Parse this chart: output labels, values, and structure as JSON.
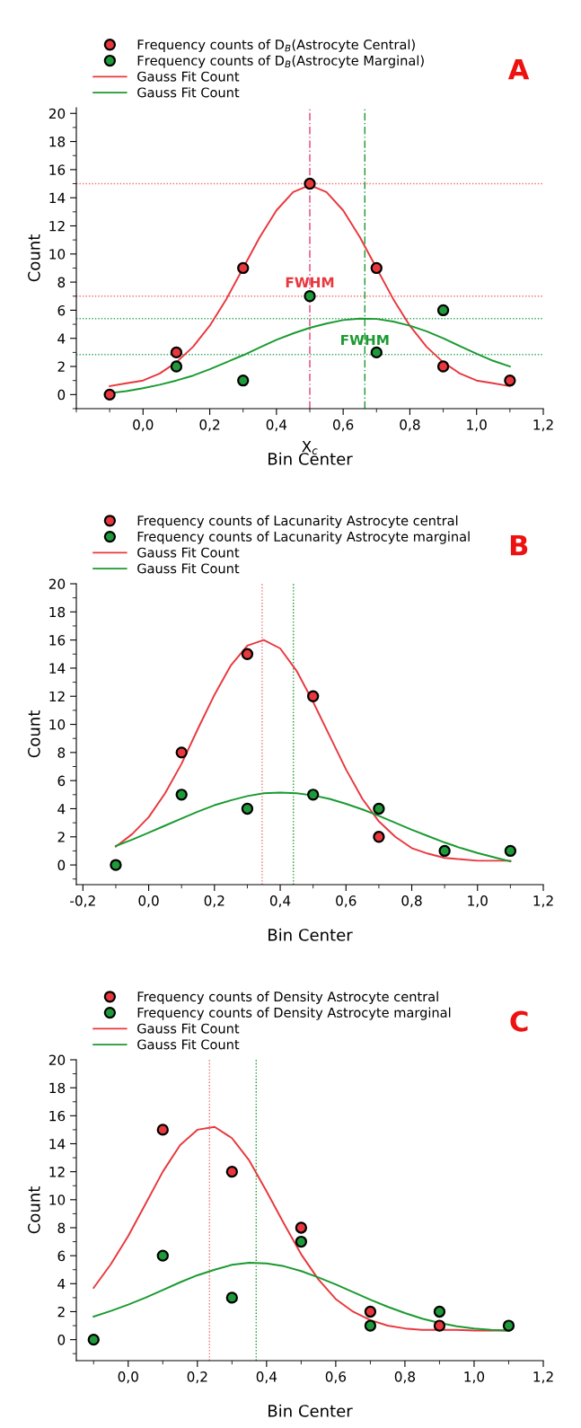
{
  "chart_data": [
    {
      "type": "scatter",
      "title": "A",
      "xlabel": "Bin Center",
      "ylabel": "Count",
      "x": [
        -0.1,
        0.1,
        0.3,
        0.5,
        0.7,
        0.9,
        1.1
      ],
      "legend": "top left",
      "xlim": [
        -0.2,
        1.2
      ],
      "ylim": [
        -1,
        20.4
      ],
      "xticks": [
        {
          "value": 0,
          "label": "0,0"
        },
        {
          "value": 0.2,
          "label": "0,2"
        },
        {
          "value": 0.4,
          "label": "0,4"
        },
        {
          "value": 0.6,
          "label": "0,6"
        },
        {
          "value": 0.8,
          "label": "0,8"
        },
        {
          "value": 1.0,
          "label": "1,0"
        },
        {
          "value": 1.2,
          "label": "1,2"
        }
      ],
      "yticks": [
        0,
        2,
        4,
        6,
        8,
        10,
        12,
        14,
        16,
        18,
        20
      ],
      "series": [
        {
          "type": "scatter",
          "marker": "circle",
          "name": "Frequency counts of D$_{B}$(Astrocyte Central)",
          "color": "#e8383d",
          "values": [
            0,
            3,
            9,
            15,
            9,
            2,
            1
          ]
        },
        {
          "type": "scatter",
          "marker": "circle",
          "name": "Frequency counts of D$_{B}$(Astrocyte Marginal)",
          "color": "#1f9a3a",
          "values": [
            null,
            2,
            1,
            7,
            3,
            6,
            null
          ]
        },
        {
          "type": "line",
          "marker": "none",
          "name": "Gauss Fit Count",
          "color": "#e8383d",
          "x": [
            -0.1,
            -0.05,
            0,
            0.05,
            0.1,
            0.15,
            0.2,
            0.25,
            0.3,
            0.35,
            0.4,
            0.45,
            0.5,
            0.55,
            0.6,
            0.65,
            0.7,
            0.75,
            0.8,
            0.85,
            0.9,
            0.95,
            1.0,
            1.05,
            1.1
          ],
          "values": [
            0.6,
            0.8,
            1.0,
            1.5,
            2.3,
            3.4,
            4.9,
            6.8,
            9.0,
            11.2,
            13.1,
            14.4,
            14.9,
            14.4,
            13.1,
            11.2,
            9.0,
            6.8,
            4.9,
            3.4,
            2.3,
            1.5,
            1.0,
            0.8,
            0.6
          ]
        },
        {
          "type": "line",
          "marker": "none",
          "name": "Gauss Fit Count",
          "color": "#1a9a30",
          "x": [
            -0.1,
            -0.05,
            0,
            0.05,
            0.1,
            0.15,
            0.2,
            0.25,
            0.3,
            0.35,
            0.4,
            0.45,
            0.5,
            0.55,
            0.6,
            0.65,
            0.7,
            0.75,
            0.8,
            0.85,
            0.9,
            0.95,
            1.0,
            1.05,
            1.1
          ],
          "values": [
            0.1,
            0.25,
            0.45,
            0.7,
            1.0,
            1.35,
            1.8,
            2.3,
            2.8,
            3.35,
            3.9,
            4.35,
            4.75,
            5.05,
            5.3,
            5.4,
            5.38,
            5.2,
            4.9,
            4.5,
            4.0,
            3.45,
            2.9,
            2.4,
            2.0
          ]
        }
      ],
      "ref_lines": [
        {
          "axis": "y",
          "value": 15,
          "color": "#f07070",
          "line_style": "dotted"
        },
        {
          "axis": "y",
          "value": 7,
          "color": "#f07070",
          "line_style": "dotted"
        },
        {
          "axis": "y",
          "value": 5.4,
          "color": "#3aa860",
          "line_style": "dotted"
        },
        {
          "axis": "y",
          "value": 2.85,
          "color": "#3aa860",
          "line_style": "dotted"
        },
        {
          "axis": "x",
          "value": 0.5,
          "color": "#e0407a",
          "line_style": "dashed"
        },
        {
          "axis": "x",
          "value": 0.665,
          "color": "#1a9a30",
          "line_style": "dashed"
        }
      ],
      "annotations": [
        {
          "text": "FWHM",
          "x": 0.5,
          "y": 7.9
        },
        {
          "text": "FWHM",
          "x": 0.665,
          "y": 3.8
        },
        "X$_{c}$"
      ]
    },
    {
      "type": "scatter",
      "title": "B",
      "xlabel": "Bin Center",
      "ylabel": "Count",
      "x": [
        -0.1,
        0.1,
        0.3,
        0.5,
        0.7,
        0.9,
        1.1
      ],
      "legend": "top left",
      "xlim": [
        -0.22,
        1.2
      ],
      "ylim": [
        -1.4,
        20
      ],
      "xticks": [
        {
          "value": -0.2,
          "label": "-0,2"
        },
        {
          "value": 0,
          "label": "0,0"
        },
        {
          "value": 0.2,
          "label": "0,2"
        },
        {
          "value": 0.4,
          "label": "0,4"
        },
        {
          "value": 0.6,
          "label": "0,6"
        },
        {
          "value": 0.8,
          "label": "0,8"
        },
        {
          "value": 1.0,
          "label": "1,0"
        },
        {
          "value": 1.2,
          "label": "1,2"
        }
      ],
      "yticks": [
        0,
        2,
        4,
        6,
        8,
        10,
        12,
        14,
        16,
        18,
        20
      ],
      "series": [
        {
          "type": "scatter",
          "marker": "circle",
          "name": "Frequency counts of Lacunarity Astrocyte central",
          "color": "#e8383d",
          "values": [
            null,
            8,
            15,
            12,
            2,
            null,
            null
          ]
        },
        {
          "type": "scatter",
          "marker": "circle",
          "name": "Frequency counts of Lacunarity Astrocyte marginal",
          "color": "#1f9a3a",
          "values": [
            0,
            5,
            4,
            5,
            4,
            1,
            1
          ]
        },
        {
          "type": "line",
          "marker": "none",
          "name": "Gauss Fit Count",
          "color": "#e8383d",
          "x": [
            -0.1,
            -0.05,
            0,
            0.05,
            0.1,
            0.15,
            0.2,
            0.25,
            0.3,
            0.35,
            0.4,
            0.45,
            0.5,
            0.55,
            0.6,
            0.65,
            0.7,
            0.75,
            0.8,
            0.85,
            0.9,
            0.95,
            1.0,
            1.05,
            1.1
          ],
          "values": [
            1.3,
            2.2,
            3.4,
            5.1,
            7.2,
            9.7,
            12.1,
            14.2,
            15.6,
            16.0,
            15.4,
            13.8,
            11.6,
            9.2,
            6.8,
            4.7,
            3.1,
            2.0,
            1.2,
            0.8,
            0.5,
            0.4,
            0.3,
            0.3,
            0.3
          ]
        },
        {
          "type": "line",
          "marker": "none",
          "name": "Gauss Fit Count",
          "color": "#1a9a30",
          "x": [
            -0.1,
            -0.05,
            0,
            0.05,
            0.1,
            0.15,
            0.2,
            0.25,
            0.3,
            0.35,
            0.4,
            0.45,
            0.5,
            0.55,
            0.6,
            0.65,
            0.7,
            0.75,
            0.8,
            0.85,
            0.9,
            0.95,
            1.0,
            1.05,
            1.1
          ],
          "values": [
            1.35,
            1.8,
            2.3,
            2.8,
            3.3,
            3.8,
            4.25,
            4.6,
            4.9,
            5.1,
            5.15,
            5.1,
            4.95,
            4.7,
            4.35,
            3.95,
            3.5,
            3.0,
            2.5,
            2.05,
            1.6,
            1.2,
            0.85,
            0.55,
            0.25
          ]
        }
      ],
      "ref_lines": [
        {
          "axis": "x",
          "value": 0.345,
          "color": "#f07070",
          "line_style": "dotted"
        },
        {
          "axis": "x",
          "value": 0.44,
          "color": "#1a9a30",
          "line_style": "dotted"
        }
      ]
    },
    {
      "type": "scatter",
      "title": "C",
      "xlabel": "Bin Center",
      "ylabel": "Count",
      "x": [
        -0.1,
        0.1,
        0.3,
        0.5,
        0.7,
        0.9,
        1.1
      ],
      "legend": "top left",
      "xlim": [
        -0.15,
        1.2
      ],
      "ylim": [
        -1.5,
        20
      ],
      "xticks": [
        {
          "value": 0,
          "label": "0,0"
        },
        {
          "value": 0.2,
          "label": "0,2"
        },
        {
          "value": 0.4,
          "label": "0,4"
        },
        {
          "value": 0.6,
          "label": "0,6"
        },
        {
          "value": 0.8,
          "label": "0,8"
        },
        {
          "value": 1.0,
          "label": "1,0"
        },
        {
          "value": 1.2,
          "label": "1,2"
        }
      ],
      "yticks": [
        0,
        2,
        4,
        6,
        8,
        10,
        12,
        14,
        16,
        18,
        20
      ],
      "series": [
        {
          "type": "scatter",
          "marker": "circle",
          "name": "Frequency counts of Density Astrocyte central",
          "color": "#e8383d",
          "values": [
            null,
            15,
            12,
            8,
            2,
            1,
            null
          ]
        },
        {
          "type": "scatter",
          "marker": "circle",
          "name": "Frequency counts of Density Astrocyte marginal",
          "color": "#1f9a3a",
          "values": [
            0,
            6,
            3,
            7,
            1,
            2,
            1
          ]
        },
        {
          "type": "line",
          "marker": "none",
          "name": "Gauss Fit Count",
          "color": "#e8383d",
          "x": [
            -0.1,
            -0.05,
            0,
            0.05,
            0.1,
            0.15,
            0.2,
            0.25,
            0.3,
            0.35,
            0.4,
            0.45,
            0.5,
            0.55,
            0.6,
            0.65,
            0.7,
            0.75,
            0.8,
            0.85,
            0.9,
            0.95,
            1.0,
            1.05,
            1.1
          ],
          "values": [
            3.7,
            5.4,
            7.4,
            9.7,
            12.0,
            13.9,
            15.0,
            15.2,
            14.4,
            12.8,
            10.6,
            8.3,
            6.1,
            4.3,
            2.9,
            2.0,
            1.4,
            1.0,
            0.8,
            0.7,
            0.7,
            0.7,
            0.65,
            0.65,
            0.65
          ]
        },
        {
          "type": "line",
          "marker": "none",
          "name": "Gauss Fit Count",
          "color": "#1a9a30",
          "x": [
            -0.1,
            -0.05,
            0,
            0.05,
            0.1,
            0.15,
            0.2,
            0.25,
            0.3,
            0.35,
            0.4,
            0.45,
            0.5,
            0.55,
            0.6,
            0.65,
            0.7,
            0.75,
            0.8,
            0.85,
            0.9,
            0.95,
            1.0,
            1.05,
            1.1
          ],
          "values": [
            1.65,
            2.05,
            2.5,
            3.0,
            3.55,
            4.1,
            4.6,
            5.0,
            5.35,
            5.5,
            5.45,
            5.25,
            4.9,
            4.45,
            3.95,
            3.4,
            2.85,
            2.35,
            1.9,
            1.5,
            1.2,
            0.95,
            0.8,
            0.7,
            0.65
          ]
        }
      ],
      "ref_lines": [
        {
          "axis": "x",
          "value": 0.235,
          "color": "#f07070",
          "line_style": "dotted"
        },
        {
          "axis": "x",
          "value": 0.37,
          "color": "#1a9a30",
          "line_style": "dotted"
        }
      ]
    }
  ]
}
